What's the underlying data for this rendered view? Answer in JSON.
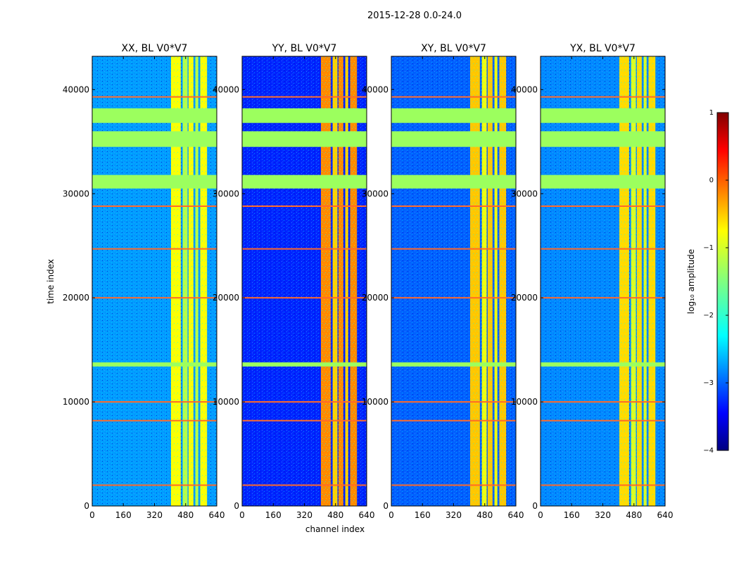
{
  "figure": {
    "suptitle": "2015-12-28 0.0-24.0"
  },
  "chart_data": {
    "type": "heatmap",
    "suptitle": "2015-12-28 0.0-24.0",
    "colormap": "jet",
    "xlabel": "channel index",
    "ylabel": "time index",
    "xlim": [
      0,
      640
    ],
    "ylim": [
      0,
      43200
    ],
    "xticks": [
      0,
      160,
      320,
      480,
      640
    ],
    "yticks": [
      0,
      10000,
      20000,
      30000,
      40000
    ],
    "panels": [
      {
        "title": "XX, BL V0*V7",
        "pol": "XX",
        "baseline": "V0*V7",
        "base_log_amplitude": -2.6,
        "band_log_amplitude": -0.9
      },
      {
        "title": "YY, BL V0*V7",
        "pol": "YY",
        "baseline": "V0*V7",
        "base_log_amplitude": -3.2,
        "band_log_amplitude": -0.3
      },
      {
        "title": "XY, BL V0*V7",
        "pol": "XY",
        "baseline": "V0*V7",
        "base_log_amplitude": -2.9,
        "band_log_amplitude": -0.6
      },
      {
        "title": "YX, BL V0*V7",
        "pol": "YX",
        "baseline": "V0*V7",
        "base_log_amplitude": -2.7,
        "band_log_amplitude": -0.7
      }
    ],
    "bright_channel_bands": [
      [
        405,
        455
      ],
      [
        465,
        490
      ],
      [
        495,
        520
      ],
      [
        530,
        545
      ],
      [
        555,
        590
      ]
    ],
    "flagged_time_ranges": [
      [
        30500,
        31800
      ],
      [
        34500,
        36000
      ],
      [
        36800,
        38200
      ],
      [
        13400,
        13800
      ]
    ],
    "rfi_time_lines": [
      2000,
      8200,
      10000,
      20000,
      24700,
      28800,
      39300
    ],
    "colorbar": {
      "label": "log₁₀ amplitude",
      "min": -4,
      "max": 1,
      "ticks": [
        {
          "value": 1,
          "label": "1"
        },
        {
          "value": 0,
          "label": "0"
        },
        {
          "value": -1,
          "label": "−1"
        },
        {
          "value": -2,
          "label": "−2"
        },
        {
          "value": -3,
          "label": "−3"
        },
        {
          "value": -4,
          "label": "−4"
        }
      ]
    }
  }
}
